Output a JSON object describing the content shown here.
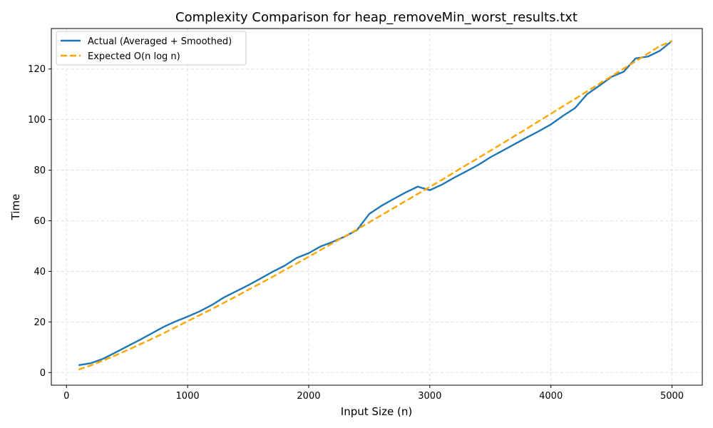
{
  "chart_data": {
    "type": "line",
    "title": "Complexity Comparison for heap_removeMin_worst_results.txt",
    "xlabel": "Input Size (n)",
    "ylabel": "Time",
    "xlim": [
      -125,
      5250
    ],
    "ylim": [
      -5,
      136
    ],
    "xticks": [
      0,
      1000,
      2000,
      3000,
      4000,
      5000
    ],
    "yticks": [
      0,
      20,
      40,
      60,
      80,
      100,
      120
    ],
    "grid": true,
    "legend_position": "top-left",
    "series": [
      {
        "name": "Actual (Averaged + Smoothed)",
        "color": "#1f77b4",
        "style": "solid",
        "x": [
          100,
          200,
          300,
          400,
          500,
          600,
          700,
          800,
          900,
          1000,
          1100,
          1200,
          1300,
          1400,
          1500,
          1600,
          1700,
          1800,
          1900,
          2000,
          2100,
          2200,
          2300,
          2400,
          2500,
          2600,
          2700,
          2800,
          2900,
          3000,
          3100,
          3200,
          3300,
          3400,
          3500,
          3600,
          3700,
          3800,
          3900,
          4000,
          4100,
          4200,
          4300,
          4400,
          4500,
          4600,
          4700,
          4800,
          4900,
          5000
        ],
        "y": [
          2.9,
          3.7,
          5.4,
          7.8,
          10.3,
          12.8,
          15.4,
          18.0,
          20.2,
          22.1,
          24.2,
          26.7,
          29.7,
          32.1,
          34.5,
          37.1,
          39.8,
          42.2,
          45.3,
          47.2,
          49.9,
          51.7,
          53.8,
          56.4,
          62.7,
          65.9,
          68.6,
          71.2,
          73.5,
          72.1,
          74.3,
          77.0,
          79.5,
          82.1,
          85.1,
          87.7,
          90.3,
          92.9,
          95.4,
          98.1,
          101.5,
          104.6,
          110.1,
          113.4,
          116.9,
          118.9,
          124.2,
          124.9,
          127.2,
          131.1
        ]
      },
      {
        "name": "Expected O(n log n)",
        "color": "#ffa500",
        "style": "dashed",
        "x": [
          100,
          200,
          300,
          400,
          500,
          600,
          700,
          800,
          900,
          1000,
          1100,
          1200,
          1300,
          1400,
          1500,
          1600,
          1700,
          1800,
          1900,
          2000,
          2100,
          2200,
          2300,
          2400,
          2500,
          2600,
          2700,
          2800,
          2900,
          3000,
          3100,
          3200,
          3300,
          3400,
          3500,
          3600,
          3700,
          3800,
          3900,
          4000,
          4100,
          4200,
          4300,
          4400,
          4500,
          4600,
          4700,
          4800,
          4900,
          5000
        ],
        "y": [
          1.2,
          2.8,
          4.7,
          6.7,
          8.8,
          11.0,
          13.2,
          15.5,
          17.9,
          20.3,
          22.7,
          25.1,
          27.6,
          30.1,
          32.7,
          35.2,
          37.8,
          40.5,
          43.1,
          45.8,
          48.5,
          51.2,
          53.9,
          56.6,
          59.4,
          62.2,
          65.0,
          67.8,
          70.6,
          73.4,
          76.2,
          79.1,
          82.0,
          84.8,
          87.7,
          90.6,
          93.5,
          96.4,
          99.4,
          102.3,
          105.3,
          108.2,
          111.2,
          114.2,
          117.1,
          120.1,
          123.1,
          126.1,
          129.1,
          131.1
        ]
      }
    ]
  }
}
